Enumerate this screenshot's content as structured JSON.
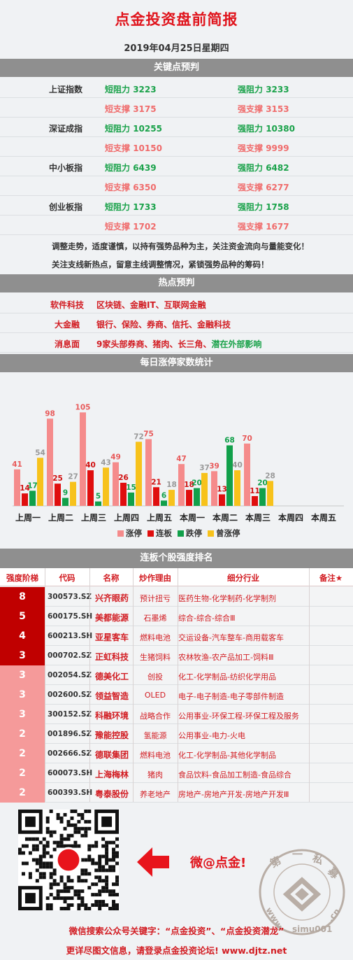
{
  "header": {
    "title": "点金投资盘前简报",
    "date": "2019年04月25日星期四"
  },
  "sections": {
    "key_points": "关键点预判",
    "hot": "热点预判",
    "limit_up_stats": "每日涨停家数统计",
    "ranking": "连板个股强度排名"
  },
  "key_levels": [
    {
      "name": "上证指数",
      "short_res_label": "短阻力",
      "short_res": "3223",
      "strong_res_label": "强阻力",
      "strong_res": "3233",
      "short_sup_label": "短支撑",
      "short_sup": "3175",
      "strong_sup_label": "强支撑",
      "strong_sup": "3153"
    },
    {
      "name": "深证成指",
      "short_res_label": "短阻力",
      "short_res": "10255",
      "strong_res_label": "强阻力",
      "strong_res": "10380",
      "short_sup_label": "短支撑",
      "short_sup": "10150",
      "strong_sup_label": "强支撑",
      "strong_sup": "9999"
    },
    {
      "name": "中小板指",
      "short_res_label": "短阻力",
      "short_res": "6439",
      "strong_res_label": "强阻力",
      "strong_res": "6482",
      "short_sup_label": "短支撑",
      "short_sup": "6350",
      "strong_sup_label": "强支撑",
      "strong_sup": "6277"
    },
    {
      "name": "创业板指",
      "short_res_label": "短阻力",
      "short_res": "1733",
      "strong_res_label": "强阻力",
      "strong_res": "1758",
      "short_sup_label": "短支撑",
      "short_sup": "1702",
      "strong_sup_label": "强支撑",
      "strong_sup": "1677"
    }
  ],
  "notes": [
    "调整走势，适度谨慎，以持有强势品种为主，关注资金流向与量能变化！",
    "关注支线新热点，留意主线调整情况，紧锁强势品种的筹码！"
  ],
  "hot_topics": [
    {
      "label": "软件科技",
      "value": "区块链、金融IT、互联网金融",
      "extra": ""
    },
    {
      "label": "大金融",
      "value": "银行、保险、券商、信托、金融科技",
      "extra": ""
    },
    {
      "label": "消息面",
      "value": "9家头部券商、猪肉、长三角、",
      "extra": "潜在外部影响"
    }
  ],
  "chart_data": {
    "type": "bar",
    "categories": [
      "上周一",
      "上周二",
      "上周三",
      "上周四",
      "上周五",
      "本周一",
      "本周二",
      "本周三",
      "本周四",
      "本周五"
    ],
    "series": [
      {
        "name": "涨停",
        "color": "#f58b8b",
        "values": [
          41,
          98,
          105,
          49,
          75,
          47,
          39,
          70,
          null,
          null
        ]
      },
      {
        "name": "连板",
        "color": "#e00e0e",
        "values": [
          14,
          25,
          40,
          26,
          21,
          18,
          13,
          11,
          null,
          null
        ]
      },
      {
        "name": "跌停",
        "color": "#11a04a",
        "values": [
          17,
          9,
          5,
          15,
          6,
          20,
          68,
          20,
          null,
          null
        ]
      },
      {
        "name": "曾涨停",
        "color": "#f7c21b",
        "values": [
          54,
          27,
          43,
          72,
          18,
          37,
          40,
          28,
          null,
          null
        ]
      }
    ],
    "label_colors": [
      "#e85a5a",
      "#d01010",
      "#11a04a",
      "#999999"
    ],
    "ylim": [
      0,
      110
    ],
    "legend_position": "bottom"
  },
  "ranking_table": {
    "headers": [
      "强度阶梯",
      "代码",
      "名称",
      "炒作理由",
      "细分行业",
      "备注★"
    ],
    "rows": [
      {
        "level": "8",
        "code": "300573.SZ",
        "name": "兴齐眼药",
        "reason": "预计扭亏",
        "industry": "医药生物-化学制药-化学制剂",
        "color": "#c00000"
      },
      {
        "level": "5",
        "code": "600175.SH",
        "name": "美都能源",
        "reason": "石墨烯",
        "industry": "综合-综合-综合Ⅲ",
        "color": "#c00000"
      },
      {
        "level": "4",
        "code": "600213.SH",
        "name": "亚星客车",
        "reason": "燃料电池",
        "industry": "交运设备-汽车整车-商用载客车",
        "color": "#c00000"
      },
      {
        "level": "3",
        "code": "000702.SZ",
        "name": "正虹科技",
        "reason": "生猪饲料",
        "industry": "农林牧渔-农产品加工-饲料Ⅲ",
        "color": "#c00000"
      },
      {
        "level": "3",
        "code": "002054.SZ",
        "name": "德美化工",
        "reason": "创投",
        "industry": "化工-化学制品-纺织化学用品",
        "color": "#f59a9a"
      },
      {
        "level": "3",
        "code": "002600.SZ",
        "name": "领益智造",
        "reason": "OLED",
        "industry": "电子-电子制造-电子零部件制造",
        "color": "#f59a9a"
      },
      {
        "level": "3",
        "code": "300152.SZ",
        "name": "科融环境",
        "reason": "战略合作",
        "industry": "公用事业-环保工程-环保工程及服务",
        "color": "#f59a9a"
      },
      {
        "level": "2",
        "code": "001896.SZ",
        "name": "豫能控股",
        "reason": "氢能源",
        "industry": "公用事业-电力-火电",
        "color": "#f59a9a"
      },
      {
        "level": "2",
        "code": "002666.SZ",
        "name": "德联集团",
        "reason": "燃料电池",
        "industry": "化工-化学制品-其他化学制品",
        "color": "#f59a9a"
      },
      {
        "level": "2",
        "code": "600073.SH",
        "name": "上海梅林",
        "reason": "猪肉",
        "industry": "食品饮料-食品加工制造-食品综合",
        "color": "#f59a9a"
      },
      {
        "level": "2",
        "code": "600393.SH",
        "name": "粤泰股份",
        "reason": "养老地产",
        "industry": "房地产-房地产开发-房地产开发Ⅲ",
        "color": "#f59a9a"
      }
    ]
  },
  "promo": {
    "weibo": "微@点金!",
    "stamp_text": "第一私募",
    "stamp_url": "www.simu001.cn",
    "search_text": "微信搜索公众号关键字：“点金投资”、“点金投资潜龙”",
    "visit_text": "更详尽图文信息，请登录点金投资论坛!  www.djtz.net"
  }
}
